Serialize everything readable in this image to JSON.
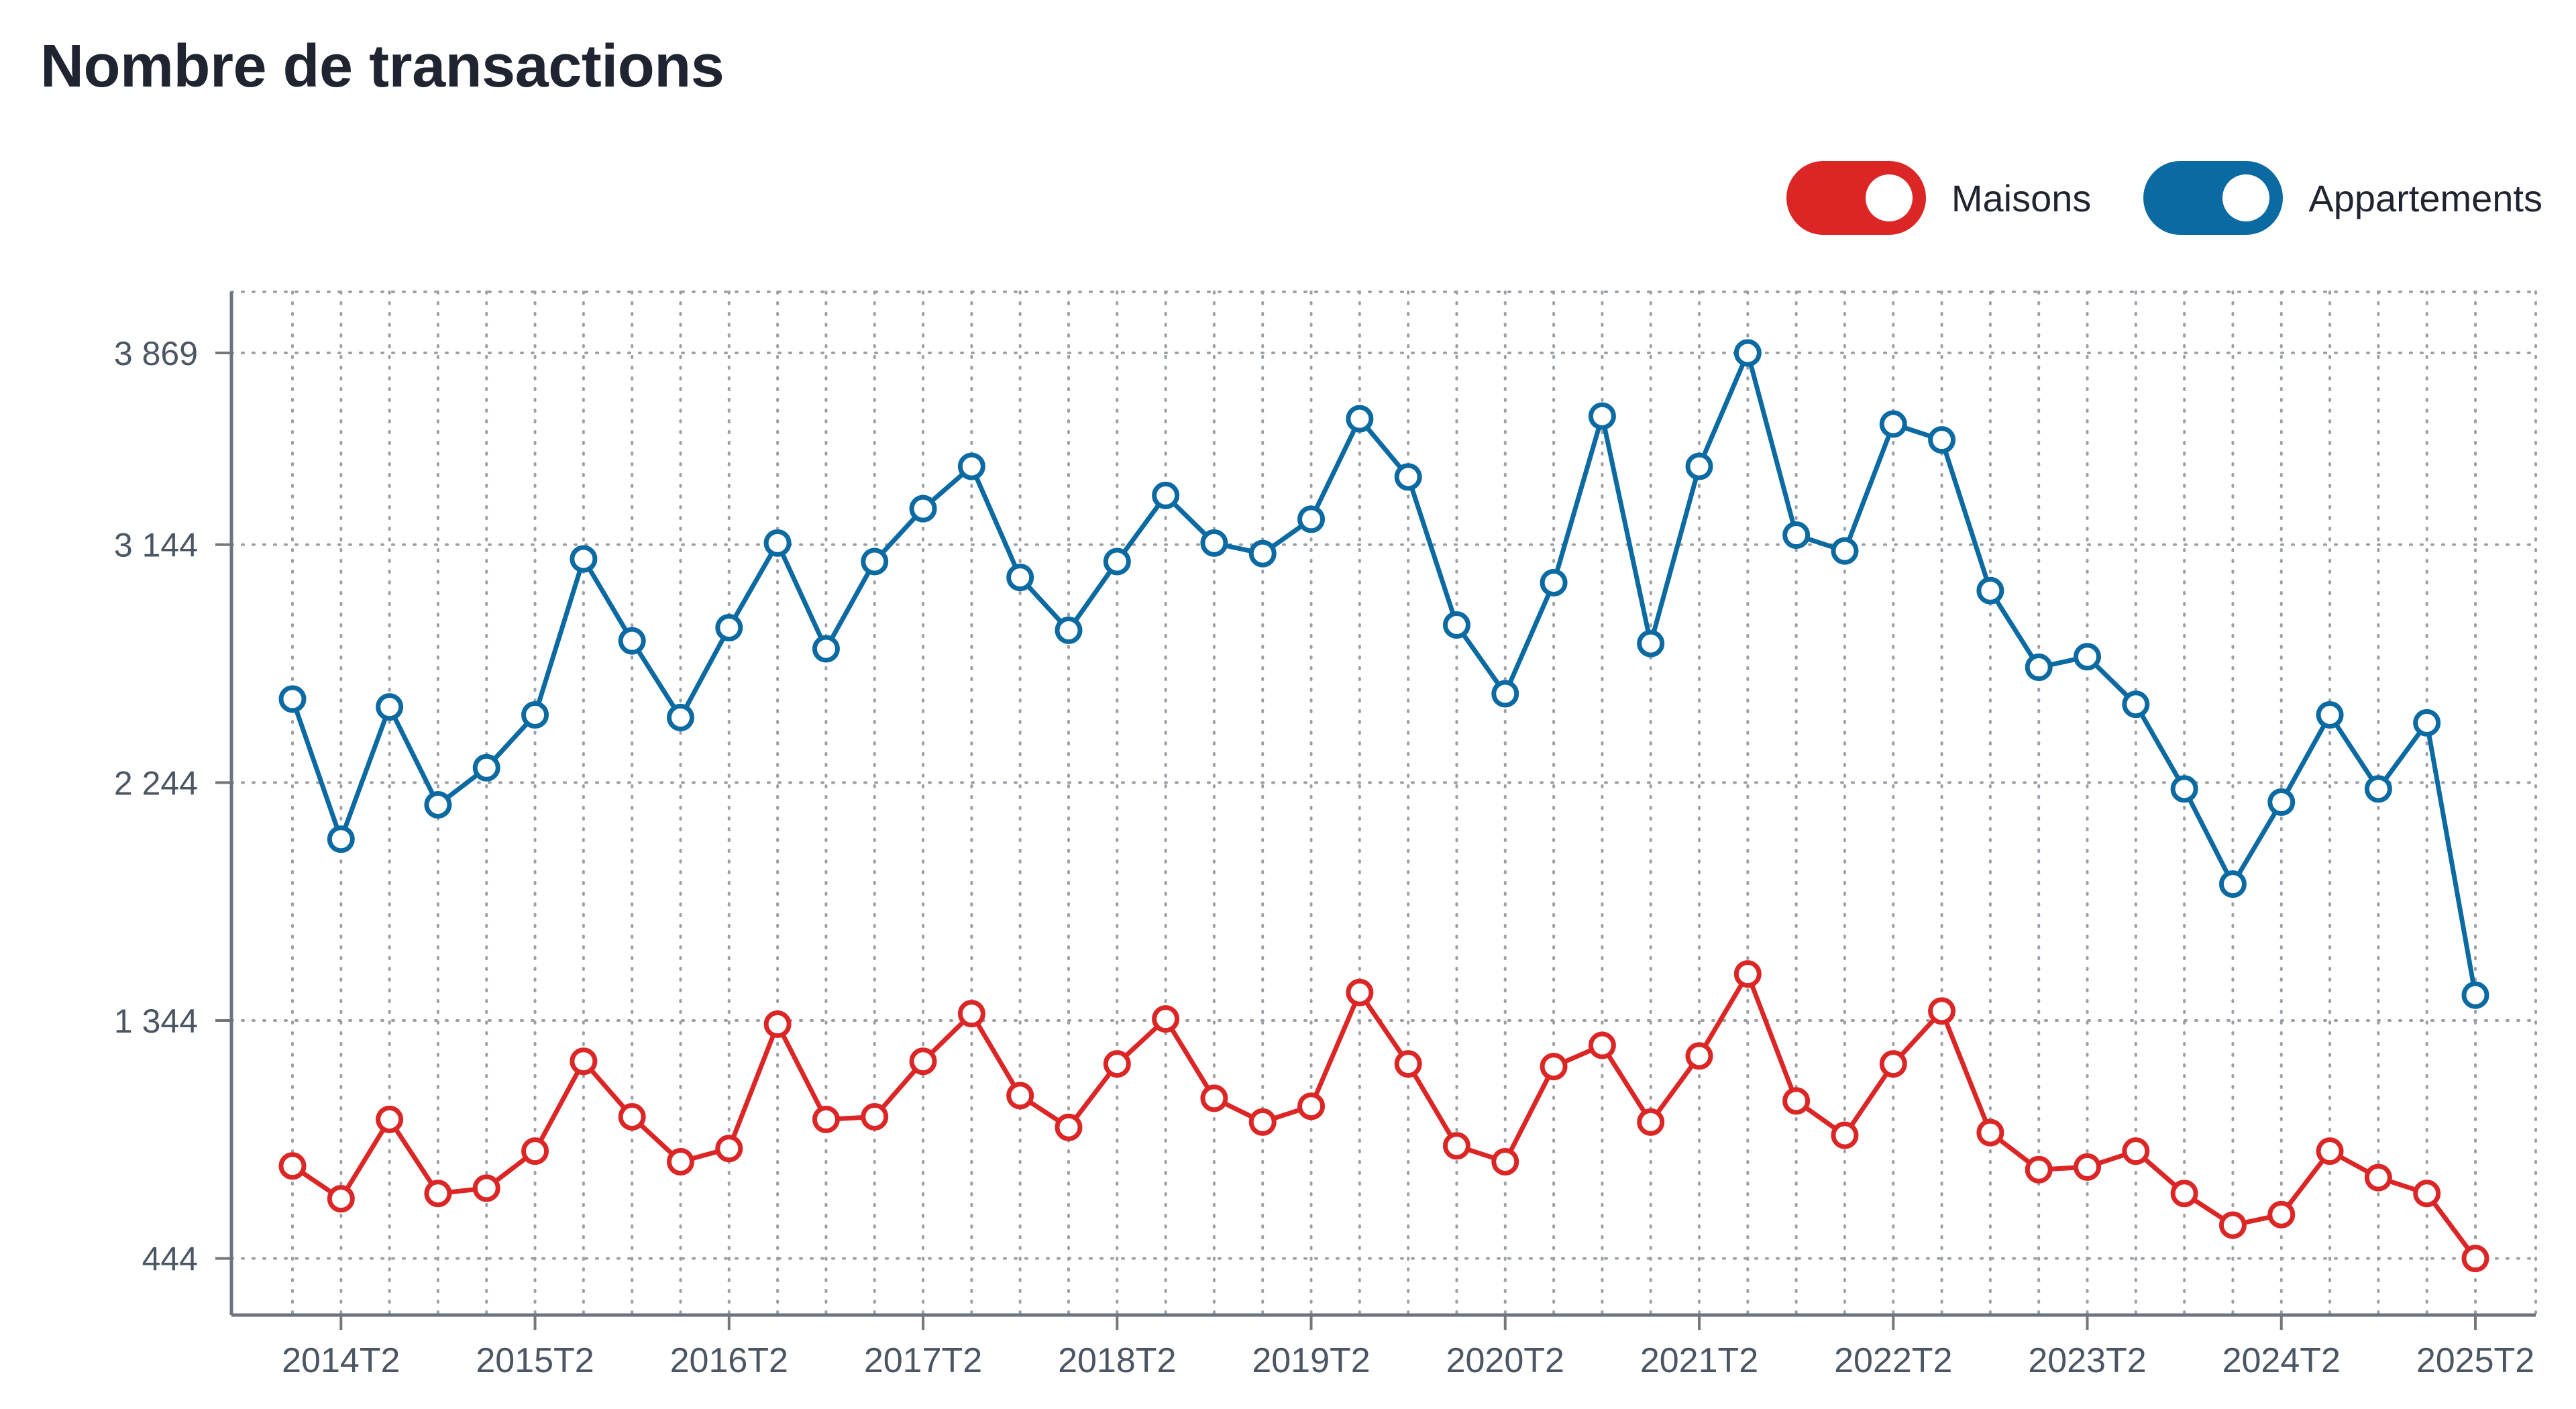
{
  "chart_data": {
    "type": "line",
    "title": "Nombre de transactions",
    "xlabel": "",
    "ylabel": "",
    "x": [
      "2014T1",
      "2014T2",
      "2014T3",
      "2014T4",
      "2015T1",
      "2015T2",
      "2015T3",
      "2015T4",
      "2016T1",
      "2016T2",
      "2016T3",
      "2016T4",
      "2017T1",
      "2017T2",
      "2017T3",
      "2017T4",
      "2018T1",
      "2018T2",
      "2018T3",
      "2018T4",
      "2019T1",
      "2019T2",
      "2019T3",
      "2019T4",
      "2020T1",
      "2020T2",
      "2020T3",
      "2020T4",
      "2021T1",
      "2021T2",
      "2021T3",
      "2021T4",
      "2022T1",
      "2022T2",
      "2022T3",
      "2022T4",
      "2023T1",
      "2023T2",
      "2023T3",
      "2023T4",
      "2024T1",
      "2024T2",
      "2024T3",
      "2024T4",
      "2025T1",
      "2025T2"
    ],
    "x_tick_labels": [
      "2014T2",
      "2015T2",
      "2016T2",
      "2017T2",
      "2018T2",
      "2019T2",
      "2020T2",
      "2021T2",
      "2022T2",
      "2023T2",
      "2024T2",
      "2025T2"
    ],
    "y_ticks": [
      444,
      1344,
      2244,
      3144,
      3869
    ],
    "y_tick_labels": [
      "444",
      "1 344",
      "2 244",
      "3 144",
      "3 869"
    ],
    "ylim": [
      230,
      4100
    ],
    "grid": true,
    "legend_position": "top-right",
    "series": [
      {
        "name": "Maisons",
        "color": "#dc2626",
        "values": [
          794,
          670,
          970,
          690,
          710,
          850,
          1190,
          980,
          810,
          860,
          1330,
          970,
          980,
          1190,
          1370,
          1060,
          940,
          1180,
          1350,
          1050,
          960,
          1020,
          1450,
          1180,
          870,
          810,
          1170,
          1250,
          960,
          1210,
          1520,
          1040,
          910,
          1180,
          1380,
          920,
          780,
          790,
          850,
          690,
          570,
          610,
          850,
          750,
          690,
          444
        ]
      },
      {
        "name": "Appartements",
        "color": "#0b6aa2",
        "values": [
          2560,
          2030,
          2530,
          2160,
          2300,
          2500,
          3090,
          2780,
          2490,
          2830,
          3150,
          2750,
          3080,
          3280,
          3440,
          3020,
          2820,
          3080,
          3330,
          3150,
          3110,
          3240,
          3620,
          3400,
          2840,
          2580,
          3000,
          3630,
          2770,
          3440,
          3869,
          3180,
          3120,
          3600,
          3540,
          2970,
          2680,
          2720,
          2540,
          2220,
          1860,
          2170,
          2500,
          2220,
          2470,
          1440
        ]
      }
    ]
  }
}
